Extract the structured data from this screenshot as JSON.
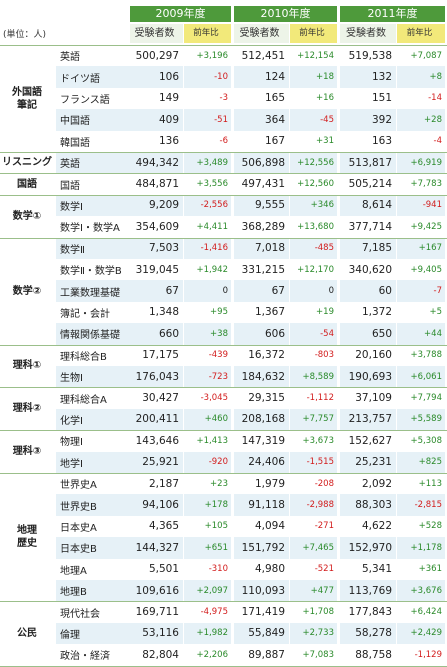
{
  "unit_label": "(単位：人)",
  "years": [
    "2009年度",
    "2010年度",
    "2011年度"
  ],
  "col_count_label": "受験者数",
  "col_diff_label": "前年比",
  "colors": {
    "header_green": "#4e9a3b",
    "diff_header_yellow": "#f2e97a",
    "row_shade": "#e6f1f7",
    "pos": "#2a8a2a",
    "neg": "#d21c1c"
  },
  "groups": [
    {
      "label": "外国語\n筆記",
      "rows": [
        0,
        4
      ]
    },
    {
      "label": "リスニング",
      "rows": [
        5,
        5
      ]
    },
    {
      "label": "国語",
      "rows": [
        6,
        6
      ]
    },
    {
      "label": "数学①",
      "rows": [
        7,
        8
      ]
    },
    {
      "label": "数学②",
      "rows": [
        9,
        13
      ]
    },
    {
      "label": "理科①",
      "rows": [
        14,
        15
      ]
    },
    {
      "label": "理科②",
      "rows": [
        16,
        17
      ]
    },
    {
      "label": "理科③",
      "rows": [
        18,
        19
      ]
    },
    {
      "label": "地理\n歴史",
      "rows": [
        20,
        25
      ]
    },
    {
      "label": "公民",
      "rows": [
        26,
        28
      ]
    }
  ],
  "rows": [
    {
      "subject": "英語",
      "v": [
        "500,297",
        "+3,196",
        "512,451",
        "+12,154",
        "519,538",
        "+7,087"
      ]
    },
    {
      "subject": "ドイツ語",
      "v": [
        "106",
        "-10",
        "124",
        "+18",
        "132",
        "+8"
      ]
    },
    {
      "subject": "フランス語",
      "v": [
        "149",
        "-3",
        "165",
        "+16",
        "151",
        "-14"
      ]
    },
    {
      "subject": "中国語",
      "v": [
        "409",
        "-51",
        "364",
        "-45",
        "392",
        "+28"
      ]
    },
    {
      "subject": "韓国語",
      "v": [
        "136",
        "-6",
        "167",
        "+31",
        "163",
        "-4"
      ]
    },
    {
      "subject": "英語",
      "v": [
        "494,342",
        "+3,489",
        "506,898",
        "+12,556",
        "513,817",
        "+6,919"
      ]
    },
    {
      "subject": "国語",
      "v": [
        "484,871",
        "+3,556",
        "497,431",
        "+12,560",
        "505,214",
        "+7,783"
      ]
    },
    {
      "subject": "数学Ⅰ",
      "v": [
        "9,209",
        "-2,556",
        "9,555",
        "+346",
        "8,614",
        "-941"
      ]
    },
    {
      "subject": "数学Ⅰ・数学A",
      "v": [
        "354,609",
        "+4,411",
        "368,289",
        "+13,680",
        "377,714",
        "+9,425"
      ]
    },
    {
      "subject": "数学Ⅱ",
      "v": [
        "7,503",
        "-1,416",
        "7,018",
        "-485",
        "7,185",
        "+167"
      ]
    },
    {
      "subject": "数学Ⅱ・数学B",
      "v": [
        "319,045",
        "+1,942",
        "331,215",
        "+12,170",
        "340,620",
        "+9,405"
      ]
    },
    {
      "subject": "工業数理基礎",
      "v": [
        "67",
        "0",
        "67",
        "0",
        "60",
        "-7"
      ]
    },
    {
      "subject": "簿記・会計",
      "v": [
        "1,348",
        "+95",
        "1,367",
        "+19",
        "1,372",
        "+5"
      ]
    },
    {
      "subject": "情報関係基礎",
      "v": [
        "660",
        "+38",
        "606",
        "-54",
        "650",
        "+44"
      ]
    },
    {
      "subject": "理科総合B",
      "v": [
        "17,175",
        "-439",
        "16,372",
        "-803",
        "20,160",
        "+3,788"
      ]
    },
    {
      "subject": "生物Ⅰ",
      "v": [
        "176,043",
        "-723",
        "184,632",
        "+8,589",
        "190,693",
        "+6,061"
      ]
    },
    {
      "subject": "理科総合A",
      "v": [
        "30,427",
        "-3,045",
        "29,315",
        "-1,112",
        "37,109",
        "+7,794"
      ]
    },
    {
      "subject": "化学Ⅰ",
      "v": [
        "200,411",
        "+460",
        "208,168",
        "+7,757",
        "213,757",
        "+5,589"
      ]
    },
    {
      "subject": "物理Ⅰ",
      "v": [
        "143,646",
        "+1,413",
        "147,319",
        "+3,673",
        "152,627",
        "+5,308"
      ]
    },
    {
      "subject": "地学Ⅰ",
      "v": [
        "25,921",
        "-920",
        "24,406",
        "-1,515",
        "25,231",
        "+825"
      ]
    },
    {
      "subject": "世界史A",
      "v": [
        "2,187",
        "+23",
        "1,979",
        "-208",
        "2,092",
        "+113"
      ]
    },
    {
      "subject": "世界史B",
      "v": [
        "94,106",
        "+178",
        "91,118",
        "-2,988",
        "88,303",
        "-2,815"
      ]
    },
    {
      "subject": "日本史A",
      "v": [
        "4,365",
        "+105",
        "4,094",
        "-271",
        "4,622",
        "+528"
      ]
    },
    {
      "subject": "日本史B",
      "v": [
        "144,327",
        "+651",
        "151,792",
        "+7,465",
        "152,970",
        "+1,178"
      ]
    },
    {
      "subject": "地理A",
      "v": [
        "5,501",
        "-310",
        "4,980",
        "-521",
        "5,341",
        "+361"
      ]
    },
    {
      "subject": "地理B",
      "v": [
        "109,616",
        "+2,097",
        "110,093",
        "+477",
        "113,769",
        "+3,676"
      ]
    },
    {
      "subject": "現代社会",
      "v": [
        "169,711",
        "-4,975",
        "171,419",
        "+1,708",
        "177,843",
        "+6,424"
      ]
    },
    {
      "subject": "倫理",
      "v": [
        "53,116",
        "+1,982",
        "55,849",
        "+2,733",
        "58,278",
        "+2,429"
      ]
    },
    {
      "subject": "政治・経済",
      "v": [
        "82,804",
        "+2,206",
        "89,887",
        "+7,083",
        "88,758",
        "-1,129"
      ]
    }
  ]
}
